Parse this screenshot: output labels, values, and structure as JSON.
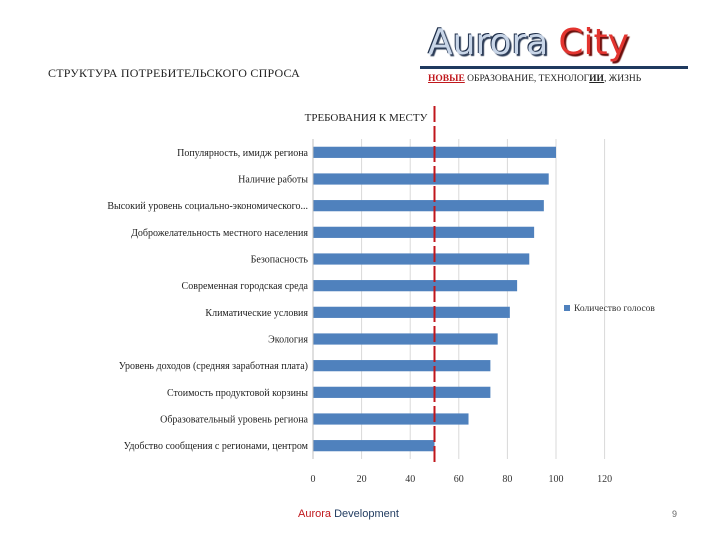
{
  "header": {
    "section_title": "СТРУКТУРА ПОТРЕБИТЕЛЬСКОГО СПРОСА",
    "brand_part1": "Aurora",
    "brand_part2": "City",
    "tagline_accent": "НОВЫЕ",
    "tagline_mid": "ОБРАЗОВАНИЕ, ТЕХНОЛОГ",
    "tagline_strong": "ИИ",
    "tagline_end": ", ЖИЗНЬ"
  },
  "chart_data": {
    "type": "bar",
    "orientation": "horizontal",
    "title": "ТРЕБОВАНИЯ К МЕСТУ",
    "categories": [
      "Популярность, имидж региона",
      "Наличие работы",
      "Высокий уровень социально-экономического...",
      "Доброжелательность местного населения",
      "Безопасность",
      "Современная городская среда",
      "Климатические условия",
      "Экология",
      "Уровень доходов (средняя заработная плата)",
      "Стоимость продуктовой корзины",
      "Образовательный уровень региона",
      "Удобство сообщения с регионами, центром"
    ],
    "series": [
      {
        "name": "Количество голосов",
        "values": [
          100,
          97,
          95,
          91,
          89,
          84,
          81,
          76,
          73,
          73,
          64,
          50
        ]
      }
    ],
    "xlim": [
      0,
      120
    ],
    "xticks": [
      0,
      20,
      40,
      60,
      80,
      100,
      120
    ],
    "xlabel": "",
    "ylabel": "",
    "reference_line_value": 50,
    "grid": "vertical",
    "legend_position": "right",
    "colors": {
      "bar": "#4f81bd",
      "reference": "#c0171c",
      "grid": "#d9d9d9"
    }
  },
  "footer": {
    "brand_red": "Aurora",
    "brand_rest": " Development",
    "page_number": "9"
  }
}
